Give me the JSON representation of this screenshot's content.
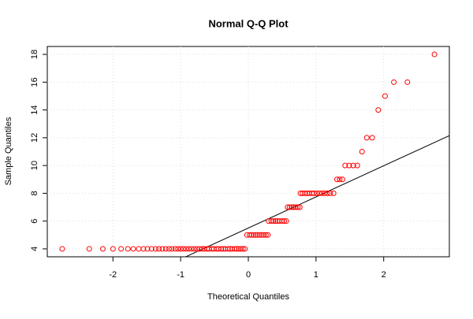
{
  "chart_data": {
    "type": "scatter",
    "title": "Normal Q-Q Plot",
    "x_label": "Theoretical Quantiles",
    "y_label": "Sample Quantiles",
    "x": [
      -2.75,
      -2.35,
      -2.15,
      -2.0,
      -1.88,
      -1.78,
      -1.7,
      -1.62,
      -1.55,
      -1.49,
      -1.43,
      -1.37,
      -1.32,
      -1.27,
      -1.22,
      -1.17,
      -1.13,
      -1.08,
      -1.04,
      -1.0,
      -0.96,
      -0.92,
      -0.88,
      -0.84,
      -0.8,
      -0.76,
      -0.72,
      -0.68,
      -0.65,
      -0.61,
      -0.58,
      -0.54,
      -0.51,
      -0.47,
      -0.44,
      -0.4,
      -0.37,
      -0.34,
      -0.3,
      -0.27,
      -0.24,
      -0.2,
      -0.17,
      -0.14,
      -0.11,
      -0.08,
      -0.05,
      -0.02,
      0.02,
      0.05,
      0.08,
      0.11,
      0.14,
      0.17,
      0.2,
      0.23,
      0.26,
      0.29,
      0.3,
      0.34,
      0.37,
      0.4,
      0.43,
      0.46,
      0.5,
      0.53,
      0.56,
      0.58,
      0.61,
      0.64,
      0.67,
      0.7,
      0.73,
      0.76,
      0.77,
      0.8,
      0.84,
      0.87,
      0.9,
      0.94,
      0.97,
      1.01,
      1.05,
      1.09,
      1.13,
      1.17,
      1.21,
      1.26,
      1.31,
      1.35,
      1.39,
      1.43,
      1.49,
      1.55,
      1.61,
      1.68,
      1.75,
      1.83,
      1.92,
      2.02,
      2.15,
      2.35,
      2.75
    ],
    "values": [
      4,
      4,
      4,
      4,
      4,
      4,
      4,
      4,
      4,
      4,
      4,
      4,
      4,
      4,
      4,
      4,
      4,
      4,
      4,
      4,
      4,
      4,
      4,
      4,
      4,
      4,
      4,
      4,
      4,
      4,
      4,
      4,
      4,
      4,
      4,
      4,
      4,
      4,
      4,
      4,
      4,
      4,
      4,
      4,
      4,
      4,
      4,
      5,
      5,
      5,
      5,
      5,
      5,
      5,
      5,
      5,
      5,
      5,
      6,
      6,
      6,
      6,
      6,
      6,
      6,
      6,
      6,
      7,
      7,
      7,
      7,
      7,
      7,
      7,
      8,
      8,
      8,
      8,
      8,
      8,
      8,
      8,
      8,
      8,
      8,
      8,
      8,
      8,
      9,
      9,
      9,
      10,
      10,
      10,
      10,
      11,
      12,
      12,
      14,
      15,
      16,
      16,
      18
    ],
    "color": "#ff0000",
    "ref_line": {
      "intercept": 5.5,
      "slope": 2.24
    },
    "xlim": [
      -2.97,
      2.97
    ],
    "ylim": [
      3.43,
      18.57
    ],
    "xticks": [
      -2,
      -1,
      0,
      1,
      2
    ],
    "yticks": [
      4,
      6,
      8,
      10,
      12,
      14,
      16,
      18
    ],
    "grid": true
  }
}
